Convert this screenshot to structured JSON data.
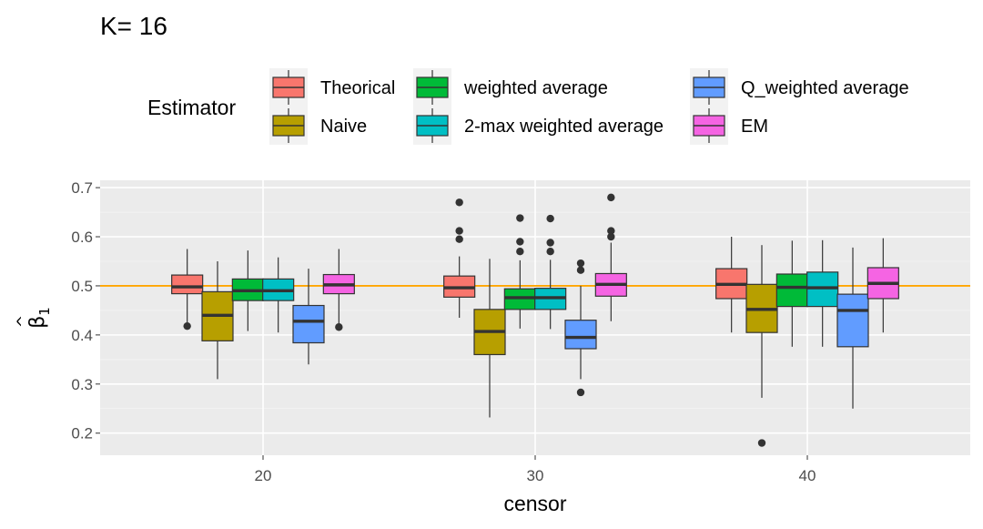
{
  "chart_data": {
    "type": "box",
    "title": "K= 16",
    "xlabel": "censor",
    "ylabel": "β̂1",
    "ylabel_parts": {
      "hat": "^",
      "symbol": "β",
      "subscript": "1"
    },
    "categories": [
      "20",
      "30",
      "40"
    ],
    "ylim": [
      0.155,
      0.715
    ],
    "yticks": [
      "0.2",
      "0.3",
      "0.4",
      "0.5",
      "0.6",
      "0.7"
    ],
    "reference_line": {
      "y": 0.5,
      "color": "#FFA500"
    },
    "legend": {
      "title": "Estimator",
      "position": "top"
    },
    "series": [
      {
        "name": "Theorical",
        "color": "#F8766D",
        "boxes": [
          {
            "min": 0.42,
            "q1": 0.484,
            "median": 0.498,
            "q3": 0.522,
            "max": 0.575,
            "outliers": [
              0.418
            ]
          },
          {
            "min": 0.435,
            "q1": 0.477,
            "median": 0.496,
            "q3": 0.52,
            "max": 0.56,
            "outliers": [
              0.595,
              0.612,
              0.67
            ]
          },
          {
            "min": 0.405,
            "q1": 0.474,
            "median": 0.503,
            "q3": 0.535,
            "max": 0.6,
            "outliers": []
          }
        ]
      },
      {
        "name": "Naive",
        "color": "#B79F00",
        "boxes": [
          {
            "min": 0.31,
            "q1": 0.388,
            "median": 0.44,
            "q3": 0.488,
            "max": 0.55,
            "outliers": []
          },
          {
            "min": 0.232,
            "q1": 0.36,
            "median": 0.407,
            "q3": 0.452,
            "max": 0.555,
            "outliers": []
          },
          {
            "min": 0.272,
            "q1": 0.405,
            "median": 0.452,
            "q3": 0.503,
            "max": 0.583,
            "outliers": [
              0.18
            ]
          }
        ]
      },
      {
        "name": "weighted average",
        "color": "#00BA38",
        "boxes": [
          {
            "min": 0.408,
            "q1": 0.47,
            "median": 0.49,
            "q3": 0.514,
            "max": 0.572,
            "outliers": []
          },
          {
            "min": 0.413,
            "q1": 0.452,
            "median": 0.476,
            "q3": 0.494,
            "max": 0.552,
            "outliers": [
              0.57,
              0.59,
              0.638
            ]
          },
          {
            "min": 0.376,
            "q1": 0.458,
            "median": 0.497,
            "q3": 0.524,
            "max": 0.592,
            "outliers": []
          }
        ]
      },
      {
        "name": "2-max weighted average",
        "color": "#00BFC4",
        "boxes": [
          {
            "min": 0.405,
            "q1": 0.47,
            "median": 0.49,
            "q3": 0.514,
            "max": 0.558,
            "outliers": []
          },
          {
            "min": 0.412,
            "q1": 0.452,
            "median": 0.476,
            "q3": 0.495,
            "max": 0.553,
            "outliers": [
              0.57,
              0.588,
              0.637
            ]
          },
          {
            "min": 0.376,
            "q1": 0.458,
            "median": 0.496,
            "q3": 0.528,
            "max": 0.593,
            "outliers": []
          }
        ]
      },
      {
        "name": "Q_weighted average",
        "color": "#619CFF",
        "boxes": [
          {
            "min": 0.34,
            "q1": 0.384,
            "median": 0.428,
            "q3": 0.46,
            "max": 0.535,
            "outliers": []
          },
          {
            "min": 0.31,
            "q1": 0.372,
            "median": 0.395,
            "q3": 0.43,
            "max": 0.5,
            "outliers": [
              0.283,
              0.532,
              0.546
            ]
          },
          {
            "min": 0.25,
            "q1": 0.376,
            "median": 0.45,
            "q3": 0.483,
            "max": 0.578,
            "outliers": []
          }
        ]
      },
      {
        "name": "EM",
        "color": "#F564E3",
        "boxes": [
          {
            "min": 0.418,
            "q1": 0.484,
            "median": 0.502,
            "q3": 0.523,
            "max": 0.575,
            "outliers": [
              0.416
            ]
          },
          {
            "min": 0.428,
            "q1": 0.479,
            "median": 0.503,
            "q3": 0.525,
            "max": 0.588,
            "outliers": [
              0.6,
              0.612,
              0.68
            ]
          },
          {
            "min": 0.405,
            "q1": 0.474,
            "median": 0.505,
            "q3": 0.537,
            "max": 0.597,
            "outliers": []
          }
        ]
      }
    ]
  }
}
